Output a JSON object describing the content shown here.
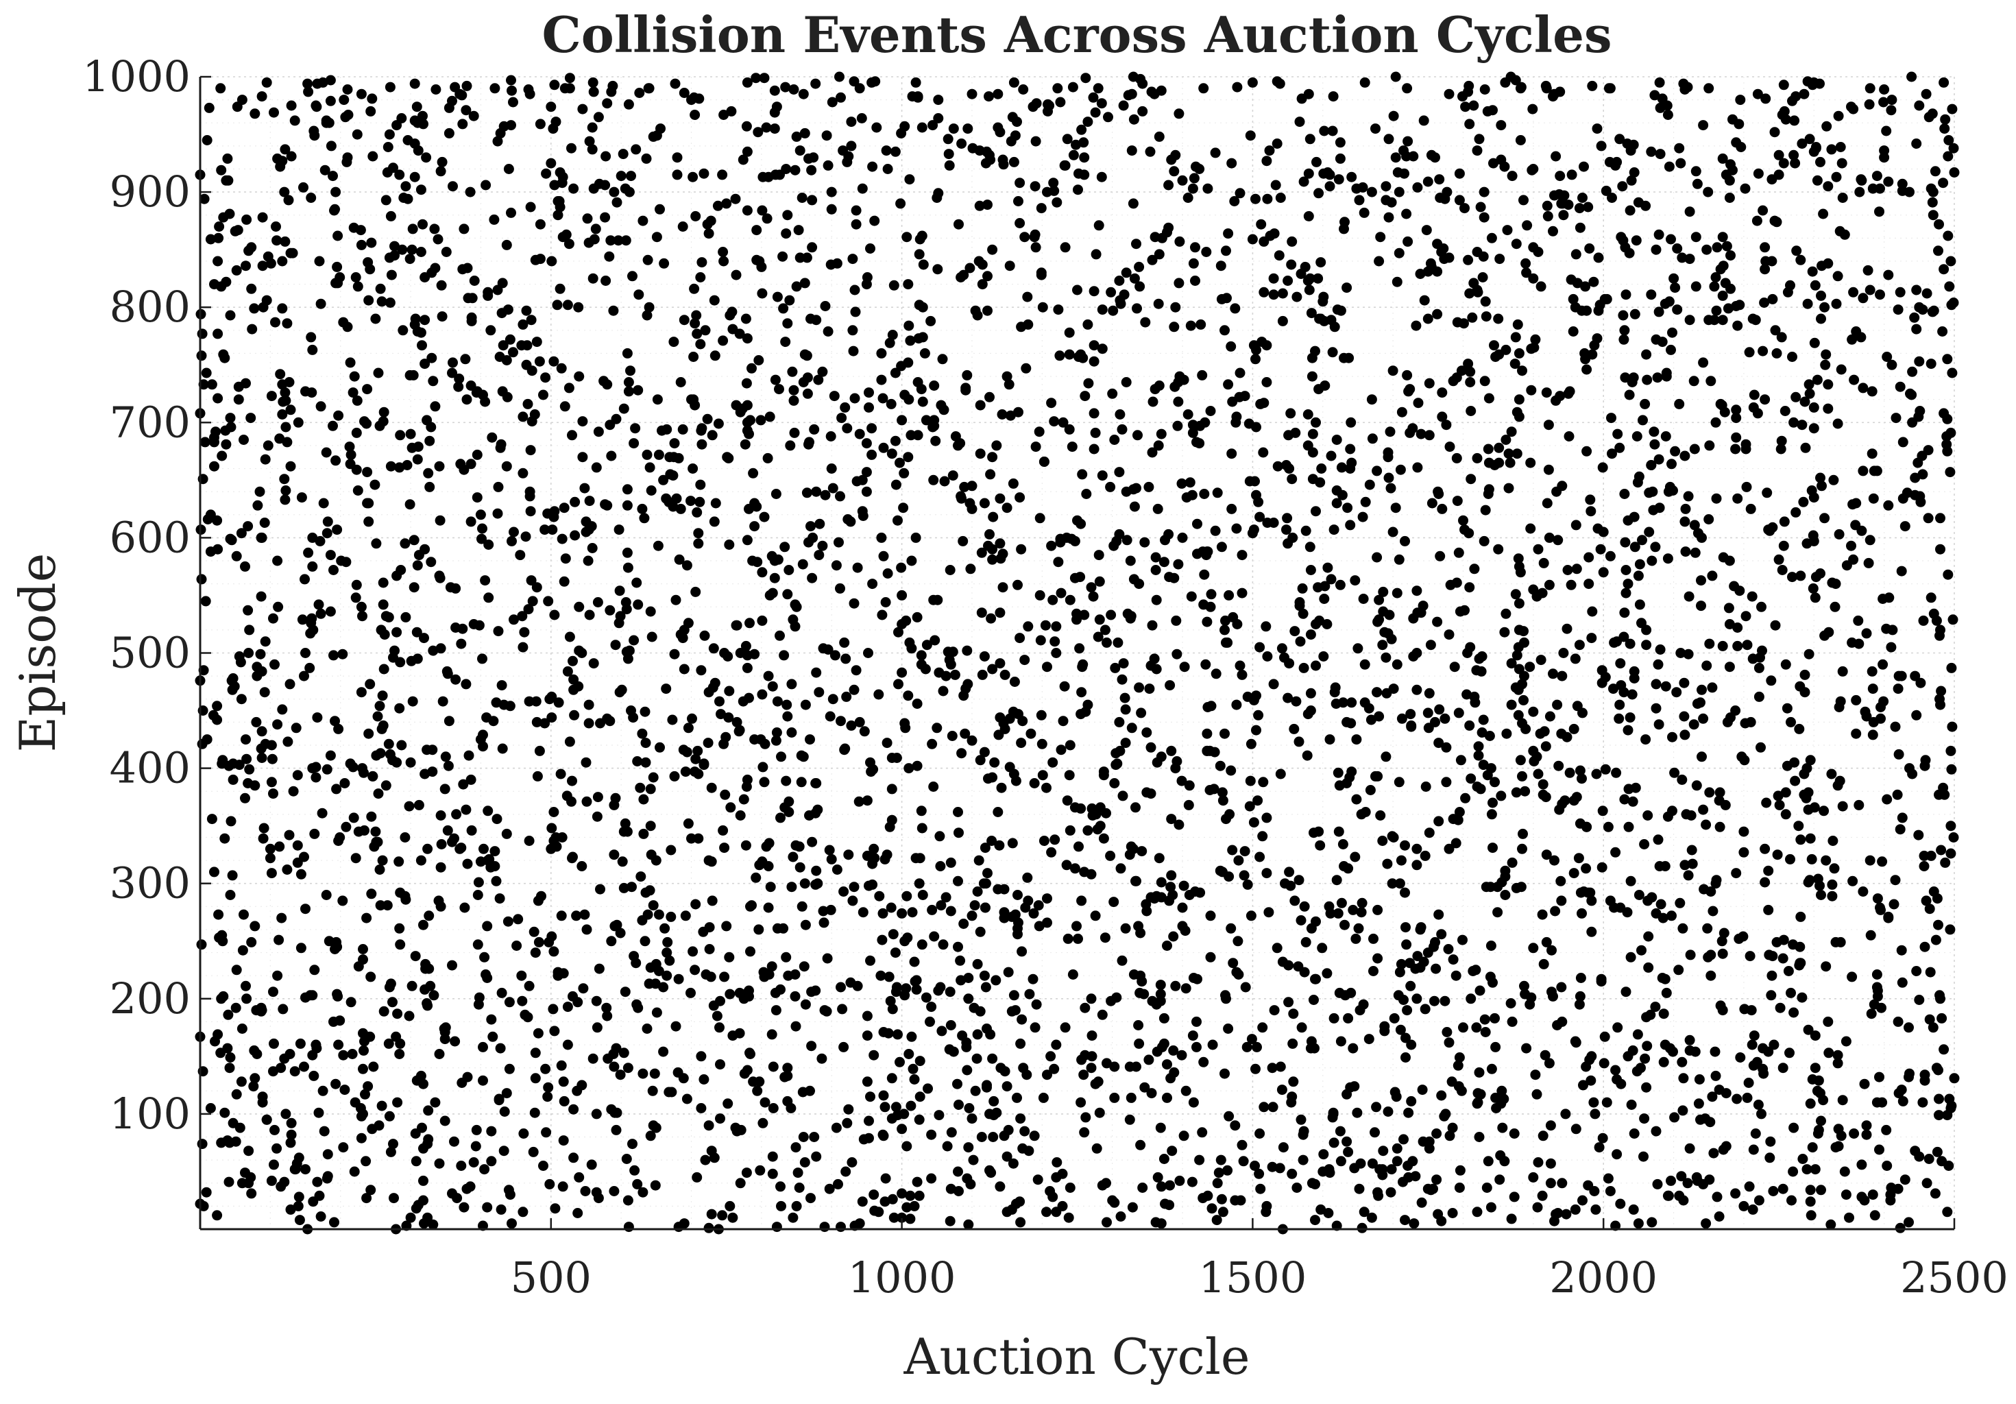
{
  "chart_data": {
    "type": "scatter",
    "title": "Collision Events Across Auction Cycles",
    "xlabel": "Auction Cycle",
    "ylabel": "Episode",
    "xlim": [
      0,
      2500
    ],
    "ylim": [
      0,
      1000
    ],
    "x_ticks": [
      500,
      1000,
      1500,
      2000,
      2500
    ],
    "x_tick_labels": [
      "500",
      "1000",
      "1500",
      "2000",
      "2500"
    ],
    "y_ticks": [
      100,
      200,
      300,
      400,
      500,
      600,
      700,
      800,
      900,
      1000
    ],
    "y_tick_labels": [
      "100",
      "200",
      "300",
      "400",
      "500",
      "600",
      "700",
      "800",
      "900",
      "1000"
    ],
    "grid": true,
    "minor_grid": true,
    "legend": "none",
    "marker_color": "#000000",
    "background_color": "#ffffff",
    "points_note": "approx. 5000 uniformly scattered collision events; sample of representative points listed",
    "points": [
      [
        10,
        945
      ],
      [
        25,
        840
      ],
      [
        60,
        980
      ],
      [
        95,
        995
      ],
      [
        130,
        975
      ],
      [
        180,
        960
      ],
      [
        230,
        985
      ],
      [
        270,
        950
      ],
      [
        310,
        960
      ],
      [
        370,
        985
      ],
      [
        420,
        990
      ],
      [
        470,
        985
      ],
      [
        520,
        990
      ],
      [
        560,
        995
      ],
      [
        640,
        990
      ],
      [
        700,
        980
      ],
      [
        780,
        995
      ],
      [
        860,
        985
      ],
      [
        940,
        990
      ],
      [
        1020,
        995
      ],
      [
        1100,
        985
      ],
      [
        1160,
        995
      ],
      [
        1210,
        975
      ],
      [
        1280,
        990
      ],
      [
        1360,
        985
      ],
      [
        1430,
        990
      ],
      [
        1500,
        995
      ],
      [
        1580,
        985
      ],
      [
        1660,
        995
      ],
      [
        1720,
        990
      ],
      [
        1780,
        985
      ],
      [
        1860,
        995
      ],
      [
        1930,
        985
      ],
      [
        2010,
        990
      ],
      [
        2080,
        995
      ],
      [
        2150,
        990
      ],
      [
        2220,
        985
      ],
      [
        2300,
        995
      ],
      [
        2380,
        990
      ],
      [
        2460,
        985
      ],
      [
        40,
        910
      ],
      [
        120,
        900
      ],
      [
        210,
        930
      ],
      [
        290,
        895
      ],
      [
        360,
        905
      ],
      [
        440,
        920
      ],
      [
        510,
        880
      ],
      [
        590,
        900
      ],
      [
        680,
        930
      ],
      [
        750,
        890
      ],
      [
        820,
        915
      ],
      [
        900,
        900
      ],
      [
        980,
        920
      ],
      [
        1050,
        895
      ],
      [
        1120,
        925
      ],
      [
        1190,
        905
      ],
      [
        1260,
        930
      ],
      [
        1330,
        890
      ],
      [
        1400,
        910
      ],
      [
        1470,
        925
      ],
      [
        1540,
        895
      ],
      [
        1610,
        915
      ],
      [
        1690,
        905
      ],
      [
        1760,
        930
      ],
      [
        1830,
        900
      ],
      [
        1900,
        920
      ],
      [
        1970,
        895
      ],
      [
        2040,
        910
      ],
      [
        2110,
        925
      ],
      [
        2180,
        895
      ],
      [
        2250,
        915
      ],
      [
        2320,
        905
      ],
      [
        2400,
        930
      ],
      [
        2470,
        900
      ],
      [
        20,
        820
      ],
      [
        90,
        800
      ],
      [
        170,
        840
      ],
      [
        250,
        790
      ],
      [
        330,
        830
      ],
      [
        410,
        810
      ],
      [
        480,
        770
      ],
      [
        560,
        825
      ],
      [
        640,
        800
      ],
      [
        720,
        780
      ],
      [
        800,
        835
      ],
      [
        870,
        790
      ],
      [
        950,
        820
      ],
      [
        1030,
        800
      ],
      [
        1110,
        840
      ],
      [
        1180,
        785
      ],
      [
        1250,
        815
      ],
      [
        1320,
        830
      ],
      [
        1390,
        800
      ],
      [
        1460,
        780
      ],
      [
        1530,
        825
      ],
      [
        1600,
        805
      ],
      [
        1680,
        840
      ],
      [
        1750,
        790
      ],
      [
        1820,
        815
      ],
      [
        1890,
        830
      ],
      [
        1960,
        800
      ],
      [
        2030,
        780
      ],
      [
        2100,
        825
      ],
      [
        2170,
        810
      ],
      [
        2240,
        840
      ],
      [
        2310,
        790
      ],
      [
        2380,
        815
      ],
      [
        2450,
        800
      ],
      [
        2495,
        840
      ],
      [
        55,
        720
      ],
      [
        140,
        700
      ],
      [
        220,
        740
      ],
      [
        300,
        690
      ],
      [
        380,
        720
      ],
      [
        460,
        705
      ],
      [
        540,
        740
      ],
      [
        620,
        695
      ],
      [
        700,
        720
      ],
      [
        780,
        700
      ],
      [
        860,
        735
      ],
      [
        940,
        690
      ],
      [
        1010,
        720
      ],
      [
        1080,
        680
      ],
      [
        1150,
        740
      ],
      [
        1230,
        700
      ],
      [
        1300,
        725
      ],
      [
        1370,
        690
      ],
      [
        1440,
        710
      ],
      [
        1520,
        735
      ],
      [
        1590,
        700
      ],
      [
        1670,
        720
      ],
      [
        1740,
        690
      ],
      [
        1810,
        735
      ],
      [
        1880,
        705
      ],
      [
        1950,
        725
      ],
      [
        2020,
        690
      ],
      [
        2090,
        740
      ],
      [
        2160,
        700
      ],
      [
        2230,
        720
      ],
      [
        2300,
        695
      ],
      [
        2370,
        730
      ],
      [
        2440,
        700
      ],
      [
        2490,
        675
      ],
      [
        15,
        620
      ],
      [
        85,
        640
      ],
      [
        160,
        600
      ],
      [
        240,
        630
      ],
      [
        320,
        590
      ],
      [
        400,
        620
      ],
      [
        470,
        640
      ],
      [
        550,
        605
      ],
      [
        630,
        625
      ],
      [
        710,
        595
      ],
      [
        790,
        630
      ],
      [
        870,
        610
      ],
      [
        950,
        640
      ],
      [
        1020,
        600
      ],
      [
        1100,
        625
      ],
      [
        1170,
        590
      ],
      [
        1250,
        615
      ],
      [
        1320,
        640
      ],
      [
        1400,
        600
      ],
      [
        1470,
        625
      ],
      [
        1550,
        595
      ],
      [
        1620,
        630
      ],
      [
        1700,
        605
      ],
      [
        1770,
        625
      ],
      [
        1800,
        615
      ],
      [
        1850,
        590
      ],
      [
        1920,
        630
      ],
      [
        2000,
        605
      ],
      [
        2070,
        640
      ],
      [
        2140,
        600
      ],
      [
        2210,
        625
      ],
      [
        2290,
        595
      ],
      [
        2360,
        630
      ],
      [
        2430,
        610
      ],
      [
        2480,
        590
      ],
      [
        5,
        485
      ],
      [
        70,
        520
      ],
      [
        150,
        500
      ],
      [
        230,
        540
      ],
      [
        310,
        495
      ],
      [
        390,
        525
      ],
      [
        460,
        505
      ],
      [
        540,
        540
      ],
      [
        610,
        495
      ],
      [
        690,
        520
      ],
      [
        770,
        500
      ],
      [
        850,
        540
      ],
      [
        920,
        495
      ],
      [
        1000,
        525
      ],
      [
        1070,
        490
      ],
      [
        1140,
        535
      ],
      [
        1220,
        500
      ],
      [
        1290,
        520
      ],
      [
        1360,
        495
      ],
      [
        1440,
        540
      ],
      [
        1510,
        505
      ],
      [
        1590,
        525
      ],
      [
        1660,
        490
      ],
      [
        1740,
        535
      ],
      [
        1810,
        505
      ],
      [
        1880,
        520
      ],
      [
        1960,
        495
      ],
      [
        2030,
        535
      ],
      [
        2110,
        500
      ],
      [
        2180,
        525
      ],
      [
        2260,
        490
      ],
      [
        2330,
        540
      ],
      [
        2410,
        505
      ],
      [
        2480,
        520
      ],
      [
        10,
        425
      ],
      [
        80,
        440
      ],
      [
        160,
        400
      ],
      [
        240,
        430
      ],
      [
        320,
        395
      ],
      [
        400,
        425
      ],
      [
        480,
        440
      ],
      [
        550,
        405
      ],
      [
        630,
        430
      ],
      [
        710,
        395
      ],
      [
        790,
        425
      ],
      [
        860,
        410
      ],
      [
        940,
        440
      ],
      [
        1010,
        400
      ],
      [
        1090,
        430
      ],
      [
        1160,
        395
      ],
      [
        1240,
        420
      ],
      [
        1310,
        440
      ],
      [
        1390,
        400
      ],
      [
        1460,
        430
      ],
      [
        1540,
        395
      ],
      [
        1610,
        425
      ],
      [
        1690,
        410
      ],
      [
        1760,
        440
      ],
      [
        1840,
        400
      ],
      [
        1910,
        430
      ],
      [
        1990,
        395
      ],
      [
        2060,
        425
      ],
      [
        2140,
        410
      ],
      [
        2210,
        440
      ],
      [
        2290,
        400
      ],
      [
        2360,
        430
      ],
      [
        2440,
        395
      ],
      [
        2495,
        415
      ],
      [
        20,
        310
      ],
      [
        100,
        330
      ],
      [
        180,
        290
      ],
      [
        260,
        320
      ],
      [
        340,
        285
      ],
      [
        420,
        315
      ],
      [
        500,
        330
      ],
      [
        570,
        295
      ],
      [
        650,
        320
      ],
      [
        730,
        285
      ],
      [
        810,
        315
      ],
      [
        880,
        300
      ],
      [
        960,
        330
      ],
      [
        1030,
        290
      ],
      [
        1110,
        320
      ],
      [
        1180,
        285
      ],
      [
        1260,
        310
      ],
      [
        1330,
        330
      ],
      [
        1410,
        290
      ],
      [
        1480,
        320
      ],
      [
        1560,
        285
      ],
      [
        1630,
        315
      ],
      [
        1710,
        300
      ],
      [
        1780,
        330
      ],
      [
        1860,
        290
      ],
      [
        1930,
        320
      ],
      [
        2010,
        285
      ],
      [
        2080,
        315
      ],
      [
        2160,
        300
      ],
      [
        2230,
        330
      ],
      [
        2310,
        290
      ],
      [
        2380,
        320
      ],
      [
        2460,
        285
      ],
      [
        2495,
        350
      ],
      [
        30,
        200
      ],
      [
        110,
        220
      ],
      [
        190,
        180
      ],
      [
        270,
        210
      ],
      [
        350,
        175
      ],
      [
        430,
        205
      ],
      [
        510,
        220
      ],
      [
        580,
        185
      ],
      [
        660,
        210
      ],
      [
        740,
        175
      ],
      [
        820,
        205
      ],
      [
        890,
        190
      ],
      [
        970,
        220
      ],
      [
        1040,
        180
      ],
      [
        1120,
        210
      ],
      [
        1190,
        175
      ],
      [
        1270,
        200
      ],
      [
        1340,
        220
      ],
      [
        1420,
        180
      ],
      [
        1490,
        210
      ],
      [
        1570,
        175
      ],
      [
        1640,
        205
      ],
      [
        1720,
        190
      ],
      [
        1790,
        220
      ],
      [
        1870,
        180
      ],
      [
        1940,
        210
      ],
      [
        2020,
        175
      ],
      [
        2090,
        205
      ],
      [
        2170,
        190
      ],
      [
        2240,
        220
      ],
      [
        2320,
        180
      ],
      [
        2390,
        210
      ],
      [
        2470,
        175
      ],
      [
        15,
        105
      ],
      [
        95,
        95
      ],
      [
        175,
        120
      ],
      [
        255,
        90
      ],
      [
        335,
        110
      ],
      [
        415,
        85
      ],
      [
        495,
        115
      ],
      [
        565,
        100
      ],
      [
        645,
        120
      ],
      [
        725,
        90
      ],
      [
        805,
        110
      ],
      [
        875,
        80
      ],
      [
        955,
        115
      ],
      [
        1025,
        95
      ],
      [
        1105,
        120
      ],
      [
        1175,
        85
      ],
      [
        1255,
        110
      ],
      [
        1325,
        95
      ],
      [
        1405,
        120
      ],
      [
        1475,
        90
      ],
      [
        1555,
        110
      ],
      [
        1625,
        85
      ],
      [
        1705,
        115
      ],
      [
        1775,
        100
      ],
      [
        1855,
        120
      ],
      [
        1925,
        90
      ],
      [
        2005,
        110
      ],
      [
        2075,
        85
      ],
      [
        2155,
        115
      ],
      [
        2225,
        100
      ],
      [
        2305,
        120
      ],
      [
        2375,
        90
      ],
      [
        2455,
        110
      ],
      [
        2495,
        105
      ],
      [
        60,
        40
      ],
      [
        140,
        20
      ],
      [
        220,
        50
      ],
      [
        300,
        10
      ],
      [
        380,
        35
      ],
      [
        460,
        15
      ],
      [
        540,
        45
      ],
      [
        610,
        25
      ],
      [
        690,
        5
      ],
      [
        770,
        40
      ],
      [
        850,
        20
      ],
      [
        920,
        50
      ],
      [
        1000,
        10
      ],
      [
        1070,
        35
      ],
      [
        1150,
        15
      ],
      [
        1220,
        45
      ],
      [
        1300,
        25
      ],
      [
        1370,
        5
      ],
      [
        1450,
        40
      ],
      [
        1520,
        20
      ],
      [
        1600,
        50
      ],
      [
        1670,
        10
      ],
      [
        1750,
        35
      ],
      [
        1820,
        15
      ],
      [
        1900,
        45
      ],
      [
        1970,
        25
      ],
      [
        2050,
        5
      ],
      [
        2120,
        40
      ],
      [
        2200,
        20
      ],
      [
        2270,
        50
      ],
      [
        2350,
        10
      ],
      [
        2420,
        35
      ],
      [
        2490,
        15
      ]
    ]
  }
}
